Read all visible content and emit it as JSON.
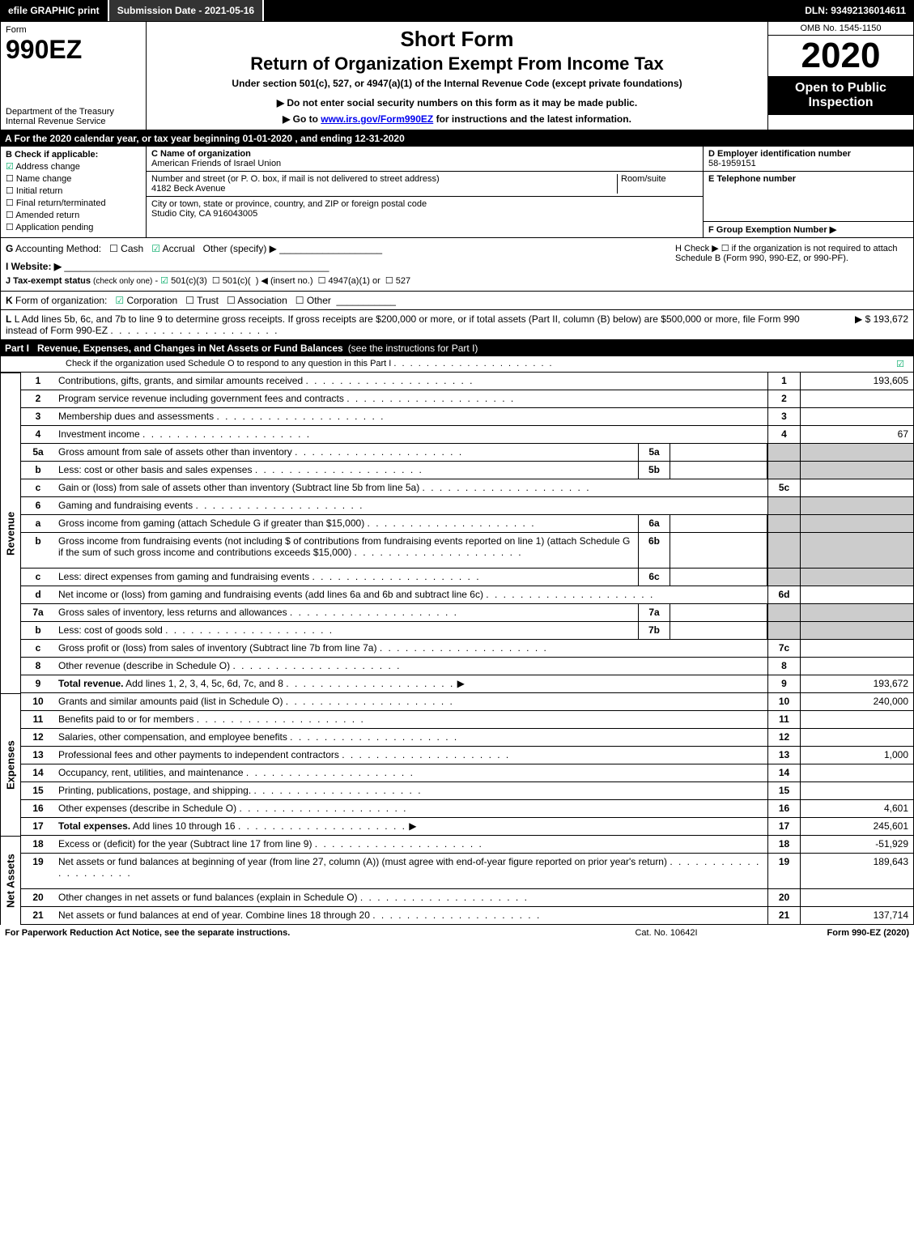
{
  "topbar": {
    "efile": "efile GRAPHIC print",
    "submission": "Submission Date - 2021-05-16",
    "dln": "DLN: 93492136014611"
  },
  "header": {
    "form_label": "Form",
    "form_number": "990EZ",
    "dept": "Department of the Treasury\nInternal Revenue Service",
    "short_form": "Short Form",
    "return_title": "Return of Organization Exempt From Income Tax",
    "under": "Under section 501(c), 527, or 4947(a)(1) of the Internal Revenue Code (except private foundations)",
    "do_not": "▶ Do not enter social security numbers on this form as it may be made public.",
    "goto_pre": "▶ Go to ",
    "goto_link": "www.irs.gov/Form990EZ",
    "goto_post": " for instructions and the latest information.",
    "omb": "OMB No. 1545-1150",
    "year": "2020",
    "open": "Open to Public Inspection"
  },
  "line_a": "A  For the 2020 calendar year, or tax year beginning 01-01-2020 , and ending 12-31-2020",
  "col_b": {
    "title": "B  Check if applicable:",
    "items": [
      "Address change",
      "Name change",
      "Initial return",
      "Final return/terminated",
      "Amended return",
      "Application pending"
    ],
    "checked": [
      true,
      false,
      false,
      false,
      false,
      false
    ]
  },
  "col_c": {
    "name_lbl": "C Name of organization",
    "name": "American Friends of Israel Union",
    "addr_lbl": "Number and street (or P. O. box, if mail is not delivered to street address)",
    "room_lbl": "Room/suite",
    "addr": "4182 Beck Avenue",
    "city_lbl": "City or town, state or province, country, and ZIP or foreign postal code",
    "city": "Studio City, CA  916043005"
  },
  "col_def": {
    "d_lbl": "D Employer identification number",
    "d_val": "58-1959151",
    "e_lbl": "E Telephone number",
    "f_lbl": "F Group Exemption Number  ▶"
  },
  "gh": {
    "g": "G Accounting Method:   ☐ Cash   ☑ Accrual   Other (specify) ▶",
    "i": "I Website: ▶",
    "j": "J Tax-exempt status (check only one) -  ☑ 501(c)(3)  ☐ 501(c)(  ) ◀ (insert no.)  ☐ 4947(a)(1) or  ☐ 527",
    "h": "H  Check ▶  ☐  if the organization is not required to attach Schedule B (Form 990, 990-EZ, or 990-PF)."
  },
  "line_k": "K Form of organization:   ☑ Corporation   ☐ Trust   ☐ Association   ☐ Other",
  "line_l": {
    "text": "L Add lines 5b, 6c, and 7b to line 9 to determine gross receipts. If gross receipts are $200,000 or more, or if total assets (Part II, column (B) below) are $500,000 or more, file Form 990 instead of Form 990-EZ",
    "amount": "▶ $ 193,672"
  },
  "part1": {
    "tag": "Part I",
    "title": "Revenue, Expenses, and Changes in Net Assets or Fund Balances",
    "note": "(see the instructions for Part I)",
    "sub": "Check if the organization used Schedule O to respond to any question in this Part I",
    "sub_checked": "☑"
  },
  "sections": {
    "revenue": "Revenue",
    "expenses": "Expenses",
    "netassets": "Net Assets"
  },
  "lines": [
    {
      "n": "1",
      "d": "Contributions, gifts, grants, and similar amounts received",
      "rn": "1",
      "rv": "193,605"
    },
    {
      "n": "2",
      "d": "Program service revenue including government fees and contracts",
      "rn": "2",
      "rv": ""
    },
    {
      "n": "3",
      "d": "Membership dues and assessments",
      "rn": "3",
      "rv": ""
    },
    {
      "n": "4",
      "d": "Investment income",
      "rn": "4",
      "rv": "67"
    },
    {
      "n": "5a",
      "d": "Gross amount from sale of assets other than inventory",
      "mn": "5a",
      "shade_r": true
    },
    {
      "n": "b",
      "d": "Less: cost or other basis and sales expenses",
      "mn": "5b",
      "shade_r": true
    },
    {
      "n": "c",
      "d": "Gain or (loss) from sale of assets other than inventory (Subtract line 5b from line 5a)",
      "rn": "5c",
      "rv": ""
    },
    {
      "n": "6",
      "d": "Gaming and fundraising events",
      "shade_r": true
    },
    {
      "n": "a",
      "d": "Gross income from gaming (attach Schedule G if greater than $15,000)",
      "mn": "6a",
      "shade_r": true
    },
    {
      "n": "b",
      "d": "Gross income from fundraising events (not including $                    of contributions from fundraising events reported on line 1) (attach Schedule G if the sum of such gross income and contributions exceeds $15,000)",
      "mn": "6b",
      "shade_r": true,
      "tall": true
    },
    {
      "n": "c",
      "d": "Less: direct expenses from gaming and fundraising events",
      "mn": "6c",
      "shade_r": true
    },
    {
      "n": "d",
      "d": "Net income or (loss) from gaming and fundraising events (add lines 6a and 6b and subtract line 6c)",
      "rn": "6d",
      "rv": ""
    },
    {
      "n": "7a",
      "d": "Gross sales of inventory, less returns and allowances",
      "mn": "7a",
      "shade_r": true
    },
    {
      "n": "b",
      "d": "Less: cost of goods sold",
      "mn": "7b",
      "shade_r": true
    },
    {
      "n": "c",
      "d": "Gross profit or (loss) from sales of inventory (Subtract line 7b from line 7a)",
      "rn": "7c",
      "rv": ""
    },
    {
      "n": "8",
      "d": "Other revenue (describe in Schedule O)",
      "rn": "8",
      "rv": ""
    },
    {
      "n": "9",
      "d": "Total revenue. Add lines 1, 2, 3, 4, 5c, 6d, 7c, and 8",
      "rn": "9",
      "rv": "193,672",
      "bold": true,
      "arrow": true
    }
  ],
  "exp_lines": [
    {
      "n": "10",
      "d": "Grants and similar amounts paid (list in Schedule O)",
      "rn": "10",
      "rv": "240,000"
    },
    {
      "n": "11",
      "d": "Benefits paid to or for members",
      "rn": "11",
      "rv": ""
    },
    {
      "n": "12",
      "d": "Salaries, other compensation, and employee benefits",
      "rn": "12",
      "rv": ""
    },
    {
      "n": "13",
      "d": "Professional fees and other payments to independent contractors",
      "rn": "13",
      "rv": "1,000"
    },
    {
      "n": "14",
      "d": "Occupancy, rent, utilities, and maintenance",
      "rn": "14",
      "rv": ""
    },
    {
      "n": "15",
      "d": "Printing, publications, postage, and shipping.",
      "rn": "15",
      "rv": ""
    },
    {
      "n": "16",
      "d": "Other expenses (describe in Schedule O)",
      "rn": "16",
      "rv": "4,601"
    },
    {
      "n": "17",
      "d": "Total expenses. Add lines 10 through 16",
      "rn": "17",
      "rv": "245,601",
      "bold": true,
      "arrow": true
    }
  ],
  "na_lines": [
    {
      "n": "18",
      "d": "Excess or (deficit) for the year (Subtract line 17 from line 9)",
      "rn": "18",
      "rv": "-51,929"
    },
    {
      "n": "19",
      "d": "Net assets or fund balances at beginning of year (from line 27, column (A)) (must agree with end-of-year figure reported on prior year's return)",
      "rn": "19",
      "rv": "189,643",
      "tall": true
    },
    {
      "n": "20",
      "d": "Other changes in net assets or fund balances (explain in Schedule O)",
      "rn": "20",
      "rv": ""
    },
    {
      "n": "21",
      "d": "Net assets or fund balances at end of year. Combine lines 18 through 20",
      "rn": "21",
      "rv": "137,714"
    }
  ],
  "footer": {
    "left": "For Paperwork Reduction Act Notice, see the separate instructions.",
    "center": "Cat. No. 10642I",
    "right": "Form 990-EZ (2020)"
  }
}
